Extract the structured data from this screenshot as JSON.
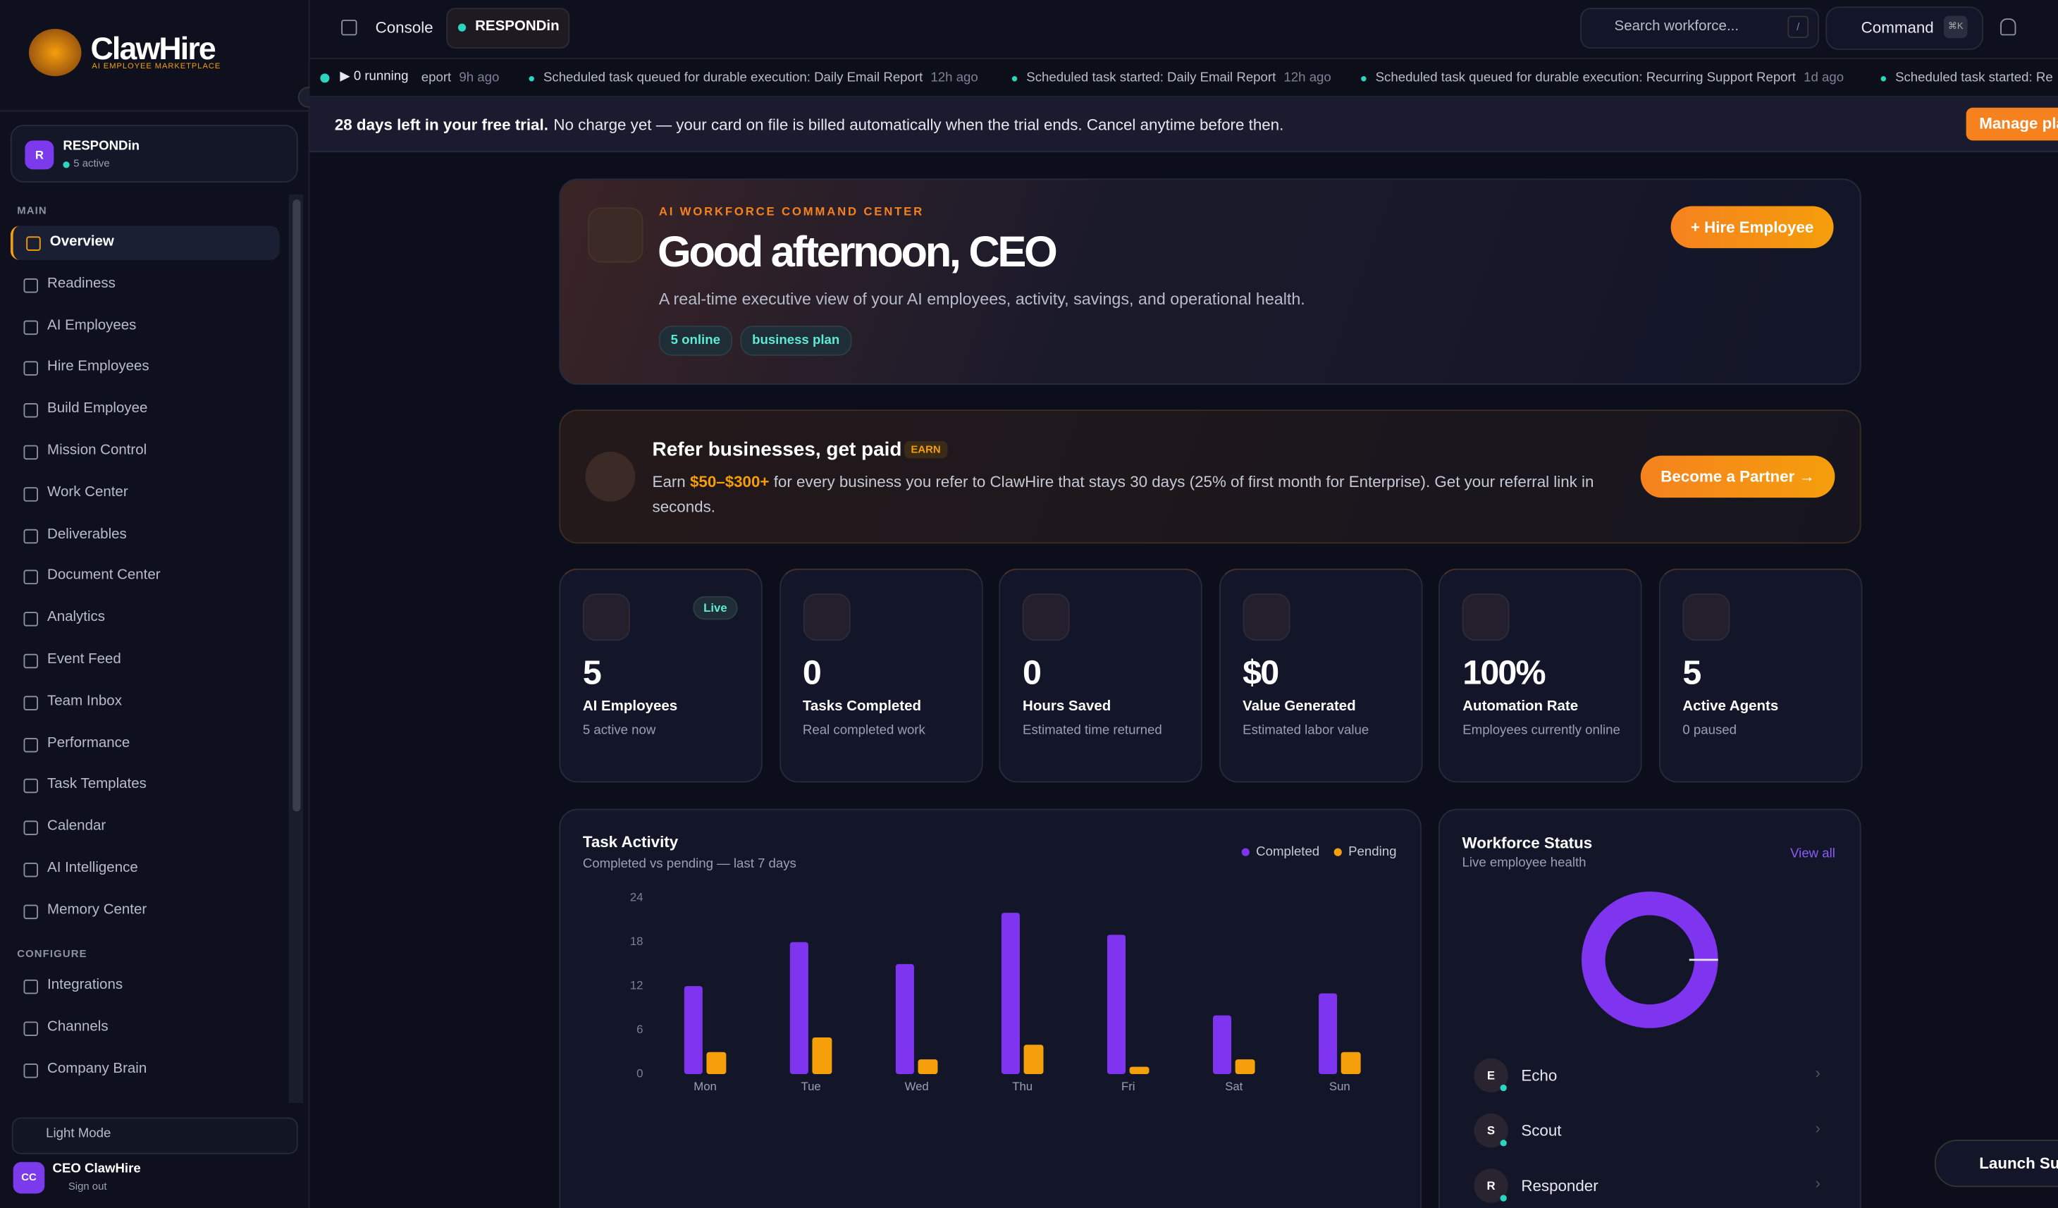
{
  "logo": {
    "name": "ClawHire",
    "tagline": "AI EMPLOYEE MARKETPLACE"
  },
  "workspace": {
    "initial": "R",
    "name": "RESPONDin",
    "status": "5 active"
  },
  "nav": {
    "main_label": "MAIN",
    "main": [
      "Overview",
      "Readiness",
      "AI Employees",
      "Hire Employees",
      "Build Employee",
      "Mission Control",
      "Work Center",
      "Deliverables",
      "Document Center",
      "Analytics",
      "Event Feed",
      "Team Inbox",
      "Performance",
      "Task Templates",
      "Calendar",
      "AI Intelligence",
      "Memory Center"
    ],
    "configure_label": "CONFIGURE",
    "configure": [
      "Integrations",
      "Channels",
      "Company Brain"
    ]
  },
  "footer": {
    "theme": "Light Mode",
    "initials": "CC",
    "user": "CEO ClawHire",
    "signout": "Sign out"
  },
  "topbar": {
    "console": "Console",
    "workspace": "RESPONDin",
    "search": "Search workforce...",
    "search_key": "/",
    "command": "Command",
    "command_key": "⌘K"
  },
  "ticker": {
    "running": "▶ 0 running",
    "items": [
      {
        "text": "eport",
        "time": "9h ago"
      },
      {
        "text": "Scheduled task queued for durable execution: Daily Email Report",
        "time": "12h ago"
      },
      {
        "text": "Scheduled task started: Daily Email Report",
        "time": "12h ago"
      },
      {
        "text": "Scheduled task queued for durable execution: Recurring Support Report",
        "time": "1d ago"
      },
      {
        "text": "Scheduled task started: Re",
        "time": ""
      }
    ]
  },
  "trial": {
    "bold": "28 days left in your free trial.",
    "text": "No charge yet — your card on file is billed automatically when the trial ends. Cancel anytime before then.",
    "button": "Manage pla"
  },
  "hero": {
    "eyebrow": "AI WORKFORCE COMMAND CENTER",
    "title": "Good afternoon, CEO",
    "subtitle": "A real-time executive view of your AI employees, activity, savings, and operational health.",
    "badges": [
      "5 online",
      "business plan"
    ],
    "button": "+  Hire Employee"
  },
  "referral": {
    "title": "Refer businesses, get paid",
    "badge": "EARN",
    "pre": "Earn",
    "amount": "$50–$300+",
    "text": "for every business you refer to ClawHire that stays 30 days (25% of first month for Enterprise). Get your referral link in seconds.",
    "button": "Become a Partner  →"
  },
  "stats": [
    {
      "value": "5",
      "label": "AI Employees",
      "sub": "5 active now",
      "badge": "Live"
    },
    {
      "value": "0",
      "label": "Tasks Completed",
      "sub": "Real completed work"
    },
    {
      "value": "0",
      "label": "Hours Saved",
      "sub": "Estimated time returned"
    },
    {
      "value": "$0",
      "label": "Value Generated",
      "sub": "Estimated labor value"
    },
    {
      "value": "100%",
      "label": "Automation Rate",
      "sub": "Employees currently online"
    },
    {
      "value": "5",
      "label": "Active Agents",
      "sub": "0 paused"
    }
  ],
  "chart_data": {
    "type": "bar",
    "title": "Task Activity",
    "subtitle": "Completed vs pending — last 7 days",
    "categories": [
      "Mon",
      "Tue",
      "Wed",
      "Thu",
      "Fri",
      "Sat",
      "Sun"
    ],
    "series": [
      {
        "name": "Completed",
        "color": "#7f35f0",
        "values": [
          12,
          18,
          15,
          22,
          19,
          8,
          11
        ]
      },
      {
        "name": "Pending",
        "color": "#f5a00b",
        "values": [
          3,
          5,
          2,
          4,
          1,
          2,
          3
        ]
      }
    ],
    "ylim": [
      0,
      24
    ],
    "yticks": [
      0,
      6,
      12,
      18,
      24
    ],
    "grid": false,
    "legend": "top-right"
  },
  "workforce": {
    "title": "Workforce Status",
    "subtitle": "Live employee health",
    "link": "View all",
    "employees": [
      {
        "initial": "E",
        "name": "Echo"
      },
      {
        "initial": "S",
        "name": "Scout"
      },
      {
        "initial": "R",
        "name": "Responder"
      }
    ]
  },
  "support": "Launch Sup"
}
